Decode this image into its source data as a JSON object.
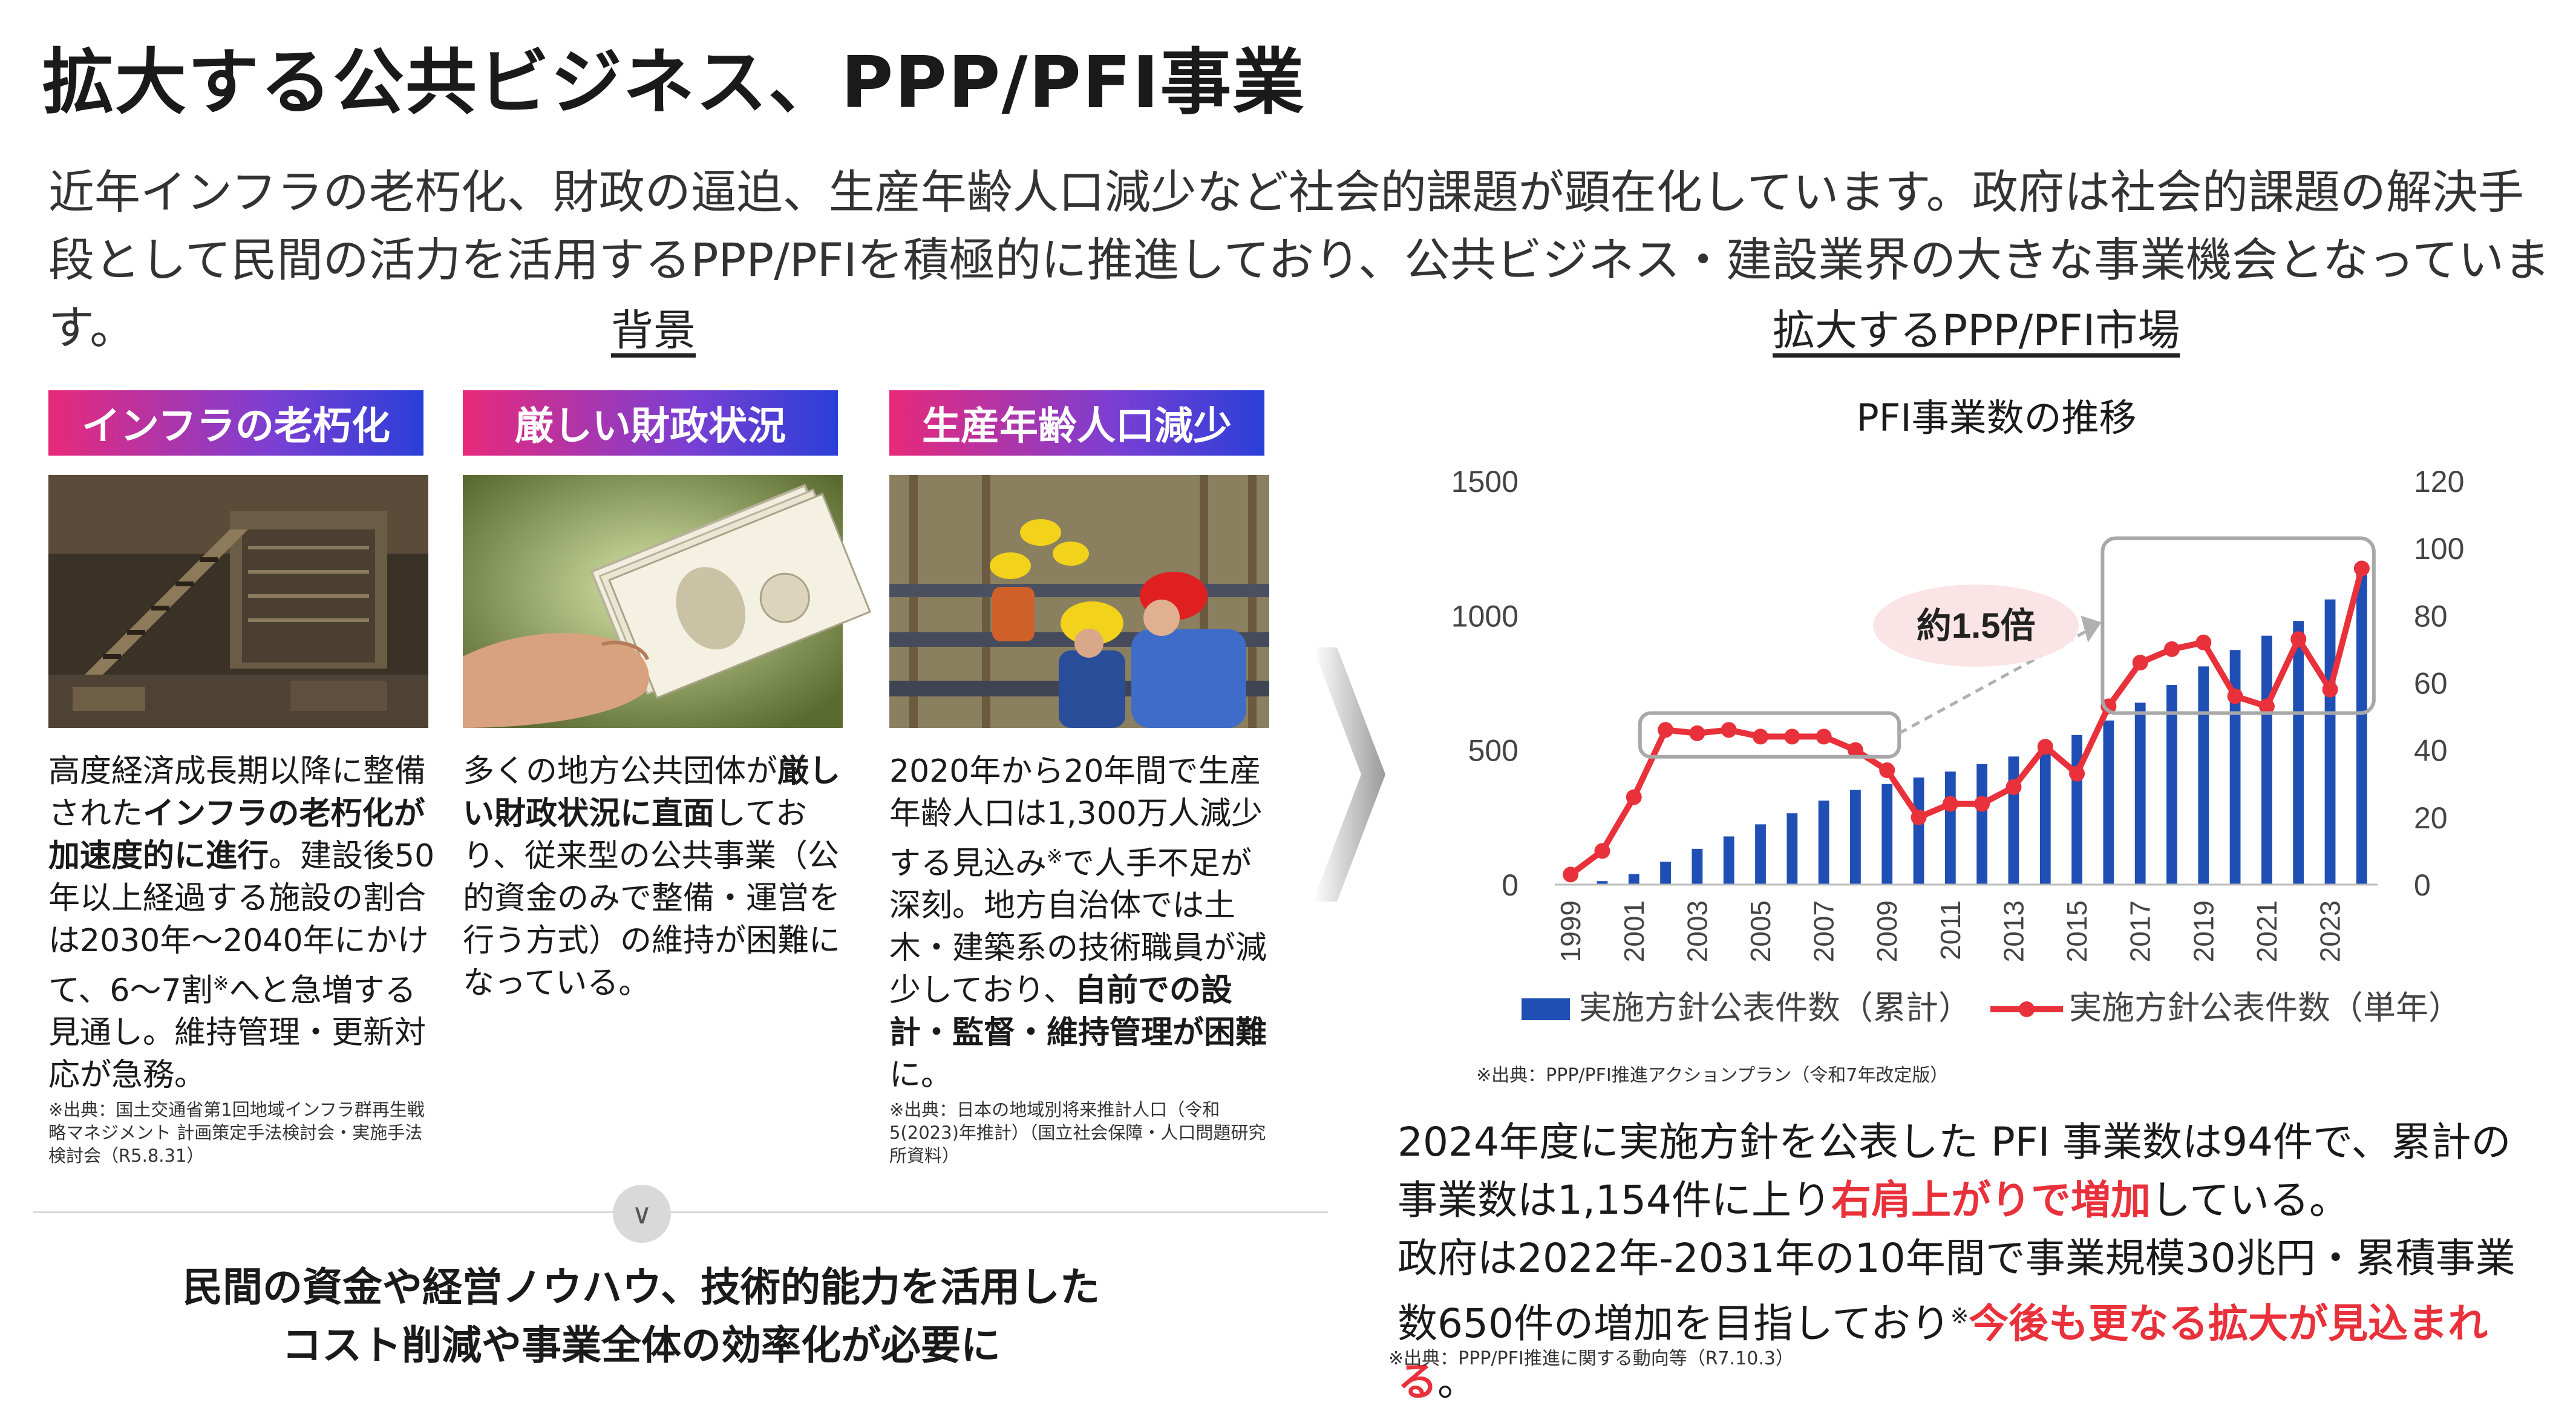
{
  "title": "拡大する公共ビジネス、PPP/PFI事業",
  "intro": "近年インフラの老朽化、財政の逼迫、生産年齢人口減少など社会的課題が顕在化しています。政府は社会的課題の解決手段として民間の活力を活用するPPP/PFIを積極的に推進しており、公共ビジネス・建設業界の大きな事業機会となっています。",
  "background_section": {
    "heading": "背景",
    "cards": [
      {
        "badge": "インフラの老朽化",
        "text_parts": [
          {
            "t": "高度経済成長期以降に整備された",
            "b": false
          },
          {
            "t": "インフラの老朽化が加速度的に進行",
            "b": true
          },
          {
            "t": "。建設後50年以上経過する施設の割合は2030年～2040年にかけて、6～7割",
            "b": false
          },
          {
            "t": "※",
            "b": false
          },
          {
            "t": "へと急増する見通し。維持管理・更新対応が急務。",
            "b": false
          }
        ],
        "note": "※出典：国土交通省第1回地域インフラ群再生戦略マネジメント 計画策定手法検討会・実施手法検討会（R5.8.31）"
      },
      {
        "badge": "厳しい財政状況",
        "text_parts": [
          {
            "t": "多くの地方公共団体が",
            "b": false
          },
          {
            "t": "厳しい財政状況に直面",
            "b": true
          },
          {
            "t": "しており、従来型の公共事業（公的資金のみで整備・運営を行う方式）の維持が困難になっている。",
            "b": false
          }
        ],
        "note": ""
      },
      {
        "badge": "生産年齢人口減少",
        "text_parts": [
          {
            "t": "2020年から20年間で生産年齢人口は1,300万人減少する見込み",
            "b": false
          },
          {
            "t": "※",
            "b": false
          },
          {
            "t": "で人手不足が深刻。地方自治体では土木・建築系の技術職員が減少しており、",
            "b": false
          },
          {
            "t": "自前での設計・監督・維持管理が困難",
            "b": true
          },
          {
            "t": "に。",
            "b": false
          }
        ],
        "note": "※出典：日本の地域別将来推計人口（令和5(2023)年推計）（国立社会保障・人口問題研究所資料）"
      }
    ],
    "chevron": "∨",
    "conclusion_line1": "民間の資金や経営ノウハウ、技術的能力を活用した",
    "conclusion_line2": "コスト削減や事業全体の効率化が必要に"
  },
  "market_section": {
    "heading": "拡大するPPP/PFI市場",
    "chart_source": "※出典：PPP/PFI推進アクションプラン（令和7年改定版）",
    "summary_line1": "2024年度に実施方針を公表した PFI 事業数は94件で、累計の",
    "summary_line2a": "事業数は1,154件に上り",
    "summary_line2b": "右肩上がりで増加",
    "summary_line2c": "している。",
    "summary_line3": "政府は2022年-2031年の10年間で事業規模30兆円・累積事業",
    "summary_line4a": "数650件の増加を目指しており",
    "summary_line4b": "※",
    "summary_line4c": "今後も更なる拡大が見込まれる",
    "summary_line4d": "。",
    "summary_source": "※出典：PPP/PFI推進に関する動向等（R7.10.3）"
  },
  "colors": {
    "bar": "#1f4fb5",
    "line": "#e8313a",
    "accent_red": "#e8313a"
  },
  "chart_data": {
    "type": "bar",
    "title": "PFI事業数の推移",
    "x": [
      1999,
      2000,
      2001,
      2002,
      2003,
      2004,
      2005,
      2006,
      2007,
      2008,
      2009,
      2010,
      2011,
      2012,
      2013,
      2014,
      2015,
      2016,
      2017,
      2018,
      2019,
      2020,
      2021,
      2022,
      2023,
      2024
    ],
    "x_tick_labels": [
      "1999",
      "2001",
      "2003",
      "2005",
      "2007",
      "2009",
      "2011",
      "2013",
      "2015",
      "2017",
      "2019",
      "2021",
      "2023"
    ],
    "series": [
      {
        "name": "実施方針公表件数（累計）",
        "type": "bar",
        "axis": "left",
        "values": [
          3,
          13,
          39,
          85,
          133,
          179,
          224,
          265,
          312,
          352,
          374,
          398,
          420,
          448,
          476,
          517,
          556,
          610,
          676,
          742,
          811,
          872,
          925,
          980,
          1060,
          1154
        ]
      },
      {
        "name": "実施方針公表件数（単年）",
        "type": "line",
        "axis": "right",
        "values": [
          3,
          10,
          26,
          46,
          45,
          46,
          44,
          44,
          44,
          40,
          34,
          20,
          24,
          24,
          29,
          41,
          33,
          53,
          66,
          70,
          72,
          56,
          53,
          73,
          58,
          94
        ]
      }
    ],
    "ylim_left": [
      0,
      1500
    ],
    "yticks_left": [
      0,
      500,
      1000,
      1500
    ],
    "ylim_right": [
      0,
      120
    ],
    "yticks_right": [
      0,
      20,
      40,
      60,
      80,
      100,
      120
    ],
    "annotation": "約1.5倍",
    "legend_position": "bottom"
  }
}
